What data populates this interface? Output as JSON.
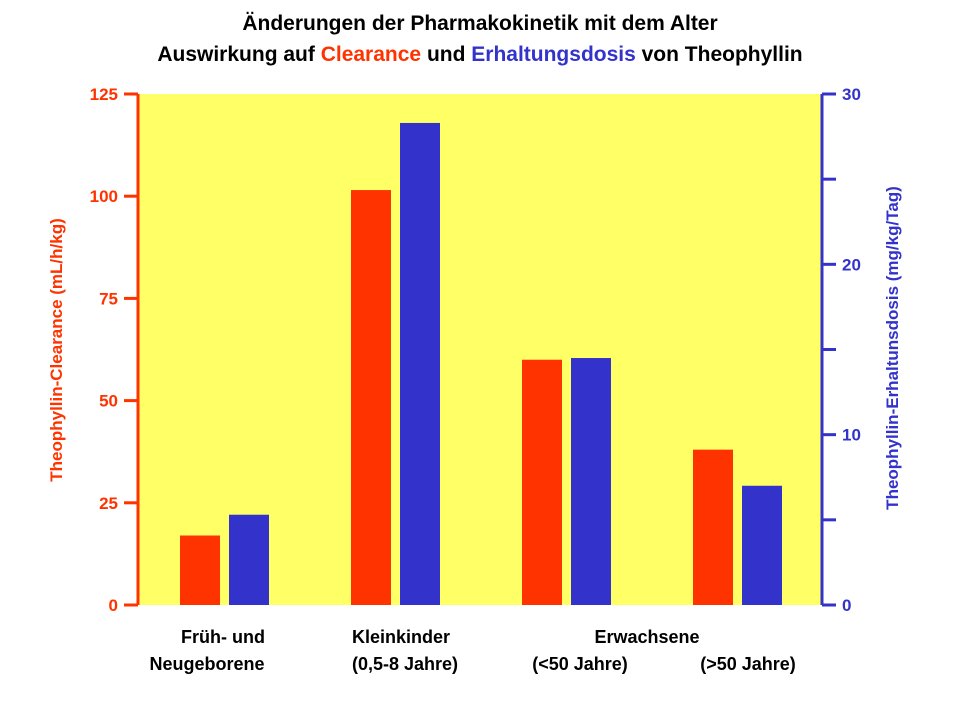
{
  "title": {
    "line1": "Änderungen der Pharmakokinetik mit dem Alter",
    "line2_prefix": "Auswirkung auf ",
    "line2_clearance": "Clearance",
    "line2_mid": " und ",
    "line2_dose": "Erhaltungsdosis",
    "line2_suffix": " von Theophyllin"
  },
  "colors": {
    "plot_bg": "#ffff66",
    "clearance": "#ff3300",
    "dose": "#3333cc",
    "text": "#000000"
  },
  "chart_data": {
    "type": "bar",
    "categories": [
      "Früh- und Neugeborene",
      "Kleinkinder (0,5-8 Jahre)",
      "Erwachsene (<50 Jahre)",
      "Erwachsene (>50 Jahre)"
    ],
    "category_labels": {
      "group1_line1": "Früh- und",
      "group1_line2": "Neugeborene",
      "group2_line1": "Kleinkinder",
      "group2_line2": "(0,5-8 Jahre)",
      "group34_line1": "Erwachsene",
      "group3_line2": "(<50 Jahre)",
      "group4_line2": "(>50 Jahre)"
    },
    "series": [
      {
        "axis": "left",
        "values": [
          17,
          101.5,
          60,
          38
        ]
      },
      {
        "axis": "right",
        "values": [
          5.3,
          28.3,
          14.5,
          7
        ]
      }
    ],
    "left_axis": {
      "label": "Theophyllin-Clearance (mL/h/kg)",
      "ylim": [
        0,
        125
      ],
      "ticks": [
        "0",
        "25",
        "50",
        "75",
        "100",
        "125"
      ]
    },
    "right_axis": {
      "label": "Theophyllin-Erhaltunsdosis (mg/kg/Tag)",
      "ylim": [
        0,
        30
      ],
      "ticks": [
        "0",
        "10",
        "20",
        "30"
      ],
      "minor_tick_values": [
        5,
        15,
        25
      ]
    },
    "grid": false,
    "legend": "none"
  }
}
